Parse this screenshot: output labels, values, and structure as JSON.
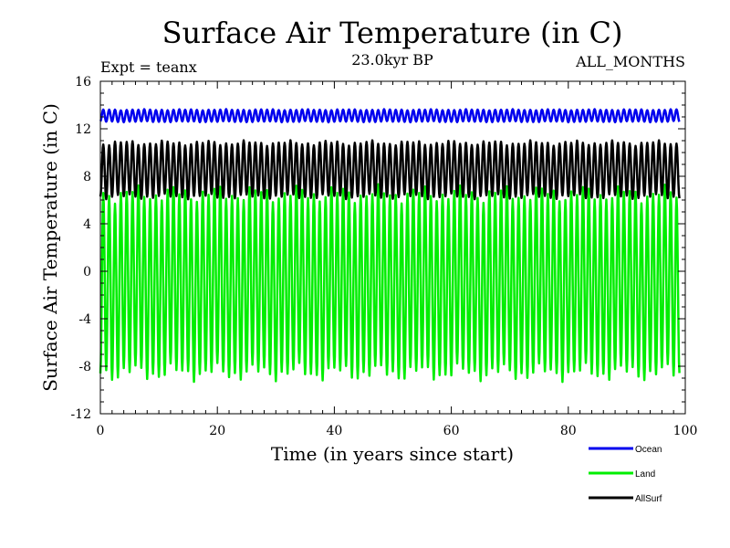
{
  "chart_data": {
    "type": "line",
    "title": "Surface Air Temperature (in C)",
    "subtitle": "23.0kyr BP",
    "left_note": "Expt = teanx",
    "right_note": "ALL_MONTHS",
    "xlabel": "Time (in years since start)",
    "ylabel": "Surface Air Temperature (in C)",
    "xlim": [
      0,
      100
    ],
    "ylim": [
      -12,
      16
    ],
    "x_ticks": [
      0,
      20,
      40,
      60,
      80,
      100
    ],
    "y_ticks": [
      -12,
      -8,
      -4,
      0,
      4,
      8,
      12,
      16
    ],
    "x_tick_labels": [
      "0",
      "20",
      "40",
      "60",
      "80",
      "100"
    ],
    "y_tick_labels": [
      "-12",
      "-8",
      "-4",
      "0",
      "4",
      "8",
      "12",
      "16"
    ],
    "time_resolution": "monthly",
    "years": 99,
    "series": [
      {
        "name": "Ocean",
        "color": "#0000ee",
        "seasonal_min": 12.6,
        "seasonal_max": 13.6,
        "mean": 13.1
      },
      {
        "name": "Land",
        "color": "#00ee00",
        "seasonal_min": -8.5,
        "seasonal_max": 6.5,
        "mean": -1.0
      },
      {
        "name": "AllSurf",
        "color": "#000000",
        "seasonal_min": 6.3,
        "seasonal_max": 10.8,
        "mean": 8.5
      }
    ],
    "legend_position": "bottom-right"
  }
}
